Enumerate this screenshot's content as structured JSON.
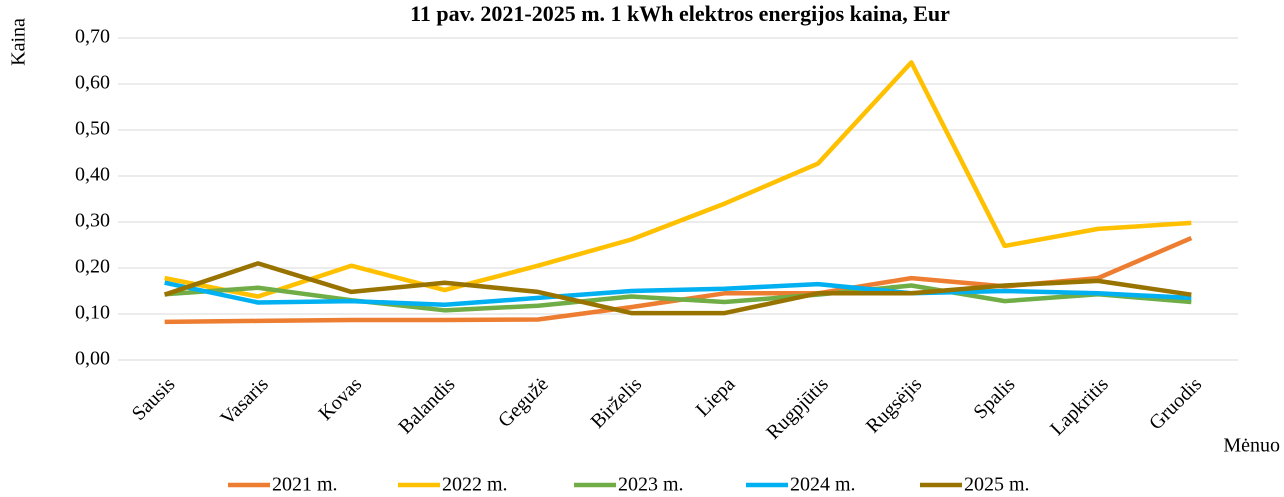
{
  "chart_data": {
    "type": "line",
    "title": "11 pav. 2021-2025 m. 1 kWh elektros energijos kaina, Eur",
    "y_label": "Kaina",
    "x_label": "Mėnuo",
    "categories": [
      "Sausis",
      "Vasaris",
      "Kovas",
      "Balandis",
      "Gegužė",
      "Birželis",
      "Liepa",
      "Rugpjūtis",
      "Rugsėjis",
      "Spalis",
      "Lapkritis",
      "Gruodis"
    ],
    "series": [
      {
        "name": "2021 m.",
        "color": "#ed7d31",
        "values": [
          0.083,
          0.085,
          0.087,
          0.087,
          0.088,
          0.115,
          0.145,
          0.145,
          0.178,
          0.16,
          0.178,
          0.265
        ]
      },
      {
        "name": "2022 m.",
        "color": "#ffc000",
        "values": [
          0.178,
          0.138,
          0.205,
          0.152,
          0.205,
          0.262,
          0.34,
          0.427,
          0.647,
          0.248,
          0.285,
          0.298
        ]
      },
      {
        "name": "2023 m.",
        "color": "#70ad47",
        "values": [
          0.143,
          0.157,
          0.13,
          0.108,
          0.118,
          0.138,
          0.126,
          0.142,
          0.162,
          0.128,
          0.143,
          0.126
        ]
      },
      {
        "name": "2024 m.",
        "color": "#00b0f0",
        "values": [
          0.168,
          0.125,
          0.128,
          0.12,
          0.135,
          0.15,
          0.155,
          0.165,
          0.145,
          0.15,
          0.145,
          0.135
        ]
      },
      {
        "name": "2025 m.",
        "color": "#997300",
        "values": [
          0.142,
          0.21,
          0.148,
          0.168,
          0.148,
          0.102,
          0.102,
          0.145,
          0.145,
          0.162,
          0.172,
          0.142
        ]
      }
    ],
    "ylim": [
      0,
      0.7
    ],
    "yticks": [
      {
        "value": 0,
        "label": "0,00"
      },
      {
        "value": 0.1,
        "label": "0,10"
      },
      {
        "value": 0.2,
        "label": "0,20"
      },
      {
        "value": 0.3,
        "label": "0,30"
      },
      {
        "value": 0.4,
        "label": "0,40"
      },
      {
        "value": 0.5,
        "label": "0,50"
      },
      {
        "value": 0.6,
        "label": "0,60"
      },
      {
        "value": 0.7,
        "label": "0,70"
      }
    ],
    "grid": true,
    "legend": "bottom"
  }
}
